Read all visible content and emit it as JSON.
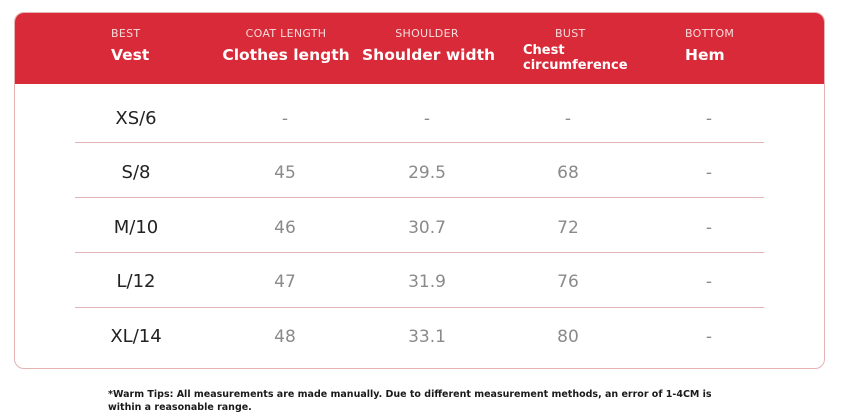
{
  "header": {
    "columns": [
      {
        "small": "BEST",
        "big": "Vest"
      },
      {
        "small": "COAT LENGTH",
        "big": "Clothes length"
      },
      {
        "small": "SHOULDER",
        "big": "Shoulder width"
      },
      {
        "small": "BUST",
        "big": "Chest circumference"
      },
      {
        "small": "BOTTOM",
        "big": "Hem"
      }
    ]
  },
  "rows": [
    {
      "size": "XS/6",
      "length": "-",
      "shoulder": "-",
      "bust": "-",
      "hem": "-"
    },
    {
      "size": "S/8",
      "length": "45",
      "shoulder": "29.5",
      "bust": "68",
      "hem": "-"
    },
    {
      "size": "M/10",
      "length": "46",
      "shoulder": "30.7",
      "bust": "72",
      "hem": "-"
    },
    {
      "size": "L/12",
      "length": "47",
      "shoulder": "31.9",
      "bust": "76",
      "hem": "-"
    },
    {
      "size": "XL/14",
      "length": "48",
      "shoulder": "33.1",
      "bust": "80",
      "hem": "-"
    }
  ],
  "footer": {
    "warm_tips": "*Warm Tips: All measurements are made manually. Due to different measurement methods, an error of 1-4CM is within a reasonable range."
  },
  "colors": {
    "header_bg": "#d82a38",
    "row_separator": "#e3b4b4",
    "card_border": "#e6b3b3"
  }
}
